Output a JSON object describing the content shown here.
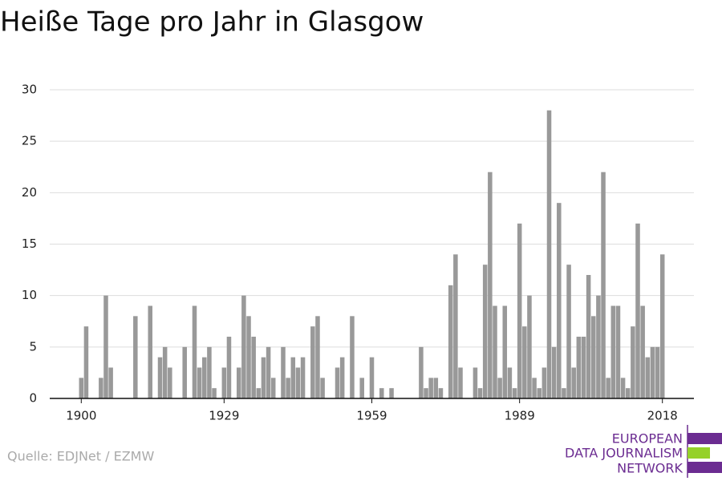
{
  "chart_data": {
    "type": "bar",
    "title": "Heiße Tage pro Jahr in Glasgow",
    "source": "Quelle: EDJNet / EZMW",
    "x": [
      1900,
      1901,
      1902,
      1903,
      1904,
      1905,
      1906,
      1907,
      1908,
      1909,
      1910,
      1911,
      1912,
      1913,
      1914,
      1915,
      1916,
      1917,
      1918,
      1919,
      1920,
      1921,
      1922,
      1923,
      1924,
      1925,
      1926,
      1927,
      1928,
      1929,
      1930,
      1931,
      1932,
      1933,
      1934,
      1935,
      1936,
      1937,
      1938,
      1939,
      1940,
      1941,
      1942,
      1943,
      1944,
      1945,
      1946,
      1947,
      1948,
      1949,
      1950,
      1951,
      1952,
      1953,
      1954,
      1955,
      1956,
      1957,
      1958,
      1959,
      1960,
      1961,
      1962,
      1963,
      1964,
      1965,
      1966,
      1967,
      1968,
      1969,
      1970,
      1971,
      1972,
      1973,
      1974,
      1975,
      1976,
      1977,
      1978,
      1979,
      1980,
      1981,
      1982,
      1983,
      1984,
      1985,
      1986,
      1987,
      1988,
      1989,
      1990,
      1991,
      1992,
      1993,
      1994,
      1995,
      1996,
      1997,
      1998,
      1999,
      2000,
      2001,
      2002,
      2003,
      2004,
      2005,
      2006,
      2007,
      2008,
      2009,
      2010,
      2011,
      2012,
      2013,
      2014,
      2015,
      2016,
      2017,
      2018
    ],
    "values": [
      2,
      7,
      0,
      0,
      2,
      10,
      3,
      0,
      0,
      0,
      0,
      8,
      0,
      0,
      9,
      0,
      4,
      5,
      3,
      0,
      0,
      5,
      0,
      9,
      3,
      4,
      5,
      1,
      0,
      3,
      6,
      0,
      3,
      10,
      8,
      6,
      1,
      4,
      5,
      2,
      0,
      5,
      2,
      4,
      3,
      4,
      0,
      7,
      8,
      2,
      0,
      0,
      3,
      4,
      0,
      8,
      0,
      2,
      0,
      4,
      0,
      1,
      0,
      1,
      0,
      0,
      0,
      0,
      0,
      5,
      1,
      2,
      2,
      1,
      0,
      11,
      14,
      3,
      0,
      0,
      3,
      1,
      13,
      22,
      9,
      2,
      9,
      3,
      1,
      17,
      7,
      10,
      2,
      1,
      3,
      28,
      5,
      19,
      1,
      13,
      3,
      6,
      6,
      12,
      8,
      10,
      22,
      2,
      9,
      9,
      2,
      1,
      7,
      17,
      9,
      4,
      5,
      5,
      14
    ],
    "color": "#999999",
    "xlim": [
      1893.6,
      2024.4
    ],
    "xticks": [
      1900,
      1929,
      1959,
      1989,
      2018
    ],
    "ylim": [
      0,
      30
    ],
    "yticks": [
      0,
      5,
      10,
      15,
      20,
      25,
      30
    ],
    "grid": true
  },
  "logo": {
    "lines": [
      "EUROPEAN",
      "DATA JOURNALISM",
      "NETWORK"
    ]
  }
}
